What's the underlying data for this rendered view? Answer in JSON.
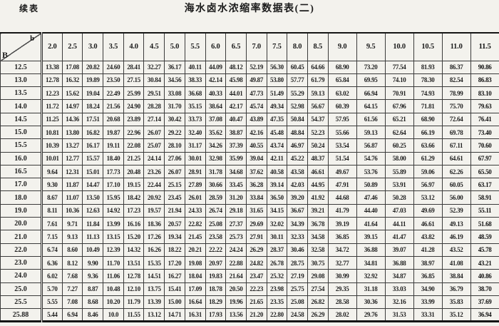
{
  "page": {
    "continued_label": "续表",
    "title": "海水卤水浓缩率数据表(二)"
  },
  "table": {
    "corner": {
      "top_label": "b",
      "bottom_label": "B"
    },
    "columns": [
      "2.0",
      "2.5",
      "3.0",
      "3.5",
      "4.0",
      "4.5",
      "5.0",
      "5.5",
      "6.0",
      "6.5",
      "7.0",
      "7.5",
      "8.0",
      "8.5",
      "9.0",
      "9.5",
      "10.0",
      "10.5",
      "11.0",
      "11.5"
    ],
    "rows": [
      {
        "label": "12.5",
        "values": [
          "13.38",
          "17.08",
          "20.82",
          "24.60",
          "28.41",
          "32.27",
          "36.17",
          "40.11",
          "44.09",
          "48.12",
          "52.19",
          "56.30",
          "60.45",
          "64.66",
          "68.90",
          "73.20",
          "77.54",
          "81.93",
          "86.37",
          "90.86"
        ]
      },
      {
        "label": "13.0",
        "values": [
          "12.78",
          "16.32",
          "19.89",
          "23.50",
          "27.15",
          "30.84",
          "34.56",
          "38.33",
          "42.14",
          "45.98",
          "49.87",
          "53.80",
          "57.77",
          "61.79",
          "65.84",
          "69.95",
          "74.10",
          "78.30",
          "82.54",
          "86.83"
        ]
      },
      {
        "label": "13.5",
        "values": [
          "12.23",
          "15.62",
          "19.04",
          "22.49",
          "25.99",
          "29.51",
          "33.08",
          "36.68",
          "40.33",
          "44.01",
          "47.73",
          "51.49",
          "55.29",
          "59.13",
          "63.02",
          "66.94",
          "70.91",
          "74.93",
          "78.99",
          "83.10"
        ]
      },
      {
        "label": "14.0",
        "values": [
          "11.72",
          "14.97",
          "18.24",
          "21.56",
          "24.90",
          "28.28",
          "31.70",
          "35.15",
          "38.64",
          "42.17",
          "45.74",
          "49.34",
          "52.98",
          "56.67",
          "60.39",
          "64.15",
          "67.96",
          "71.81",
          "75.70",
          "79.63"
        ]
      },
      {
        "label": "14.5",
        "values": [
          "11.25",
          "14.36",
          "17.51",
          "20.68",
          "23.89",
          "27.14",
          "30.42",
          "33.73",
          "37.08",
          "40.47",
          "43.89",
          "47.35",
          "50.84",
          "54.37",
          "57.95",
          "61.56",
          "65.21",
          "68.90",
          "72.64",
          "76.41"
        ]
      },
      {
        "label": "15.0",
        "values": [
          "10.81",
          "13.80",
          "16.82",
          "19.87",
          "22.96",
          "26.07",
          "29.22",
          "32.40",
          "35.62",
          "38.87",
          "42.16",
          "45.48",
          "48.84",
          "52.23",
          "55.66",
          "59.13",
          "62.64",
          "66.19",
          "69.78",
          "73.40"
        ]
      },
      {
        "label": "15.5",
        "values": [
          "10.39",
          "13.27",
          "16.17",
          "19.11",
          "22.08",
          "25.07",
          "28.10",
          "31.17",
          "34.26",
          "37.39",
          "40.55",
          "43.74",
          "46.97",
          "50.24",
          "53.54",
          "56.87",
          "60.25",
          "63.66",
          "67.11",
          "70.60"
        ]
      },
      {
        "label": "16.0",
        "values": [
          "10.01",
          "12.77",
          "15.57",
          "18.40",
          "21.25",
          "24.14",
          "27.06",
          "30.01",
          "32.98",
          "35.99",
          "39.04",
          "42.11",
          "45.22",
          "48.37",
          "51.54",
          "54.76",
          "58.00",
          "61.29",
          "64.61",
          "67.97"
        ]
      },
      {
        "label": "16.5",
        "values": [
          "9.64",
          "12.31",
          "15.01",
          "17.73",
          "20.48",
          "23.26",
          "26.07",
          "28.91",
          "31.78",
          "34.68",
          "37.62",
          "40.58",
          "43.58",
          "46.61",
          "49.67",
          "53.76",
          "55.89",
          "59.06",
          "62.26",
          "65.50"
        ]
      },
      {
        "label": "17.0",
        "values": [
          "9.30",
          "11.87",
          "14.47",
          "17.10",
          "19.15",
          "22.44",
          "25.15",
          "27.89",
          "30.66",
          "33.45",
          "36.28",
          "39.14",
          "42.03",
          "44.95",
          "47.91",
          "50.89",
          "53.91",
          "56.97",
          "60.05",
          "63.17"
        ]
      },
      {
        "label": "18.0",
        "values": [
          "8.67",
          "11.07",
          "13.50",
          "15.95",
          "18.42",
          "20.92",
          "23.45",
          "26.01",
          "28.59",
          "31.20",
          "33.84",
          "36.50",
          "39.20",
          "41.92",
          "44.68",
          "47.46",
          "50.28",
          "53.12",
          "56.00",
          "58.91"
        ]
      },
      {
        "label": "19.0",
        "values": [
          "8.11",
          "10.36",
          "12.63",
          "14.92",
          "17.23",
          "19.57",
          "21.94",
          "24.33",
          "26.74",
          "29.18",
          "31.65",
          "34.15",
          "36.67",
          "39.21",
          "41.79",
          "44.40",
          "47.03",
          "49.69",
          "52.39",
          "55.11"
        ]
      },
      {
        "label": "20.0",
        "values": [
          "7.61",
          "9.71",
          "11.84",
          "13.99",
          "16.16",
          "18.36",
          "20.57",
          "22.82",
          "25.08",
          "27.37",
          "29.69",
          "32.02",
          "34.39",
          "36.78",
          "39.19",
          "41.64",
          "44.11",
          "46.61",
          "49.13",
          "51.68"
        ]
      },
      {
        "label": "21.0",
        "values": [
          "7.15",
          "9.13",
          "11.13",
          "13.15",
          "15.20",
          "17.26",
          "19.34",
          "21.45",
          "23.58",
          "25.73",
          "27.91",
          "30.11",
          "32.33",
          "34.58",
          "36.85",
          "39.15",
          "41.47",
          "43.82",
          "46.19",
          "48.59"
        ]
      },
      {
        "label": "22.0",
        "values": [
          "6.74",
          "8.60",
          "10.49",
          "12.39",
          "14.32",
          "16.26",
          "18.22",
          "20.21",
          "22.22",
          "24.24",
          "26.29",
          "28.37",
          "30.46",
          "32.58",
          "34.72",
          "36.88",
          "39.07",
          "41.28",
          "43.52",
          "45.78"
        ]
      },
      {
        "label": "23.0",
        "values": [
          "6.36",
          "8.12",
          "9.90",
          "11.70",
          "13.51",
          "15.35",
          "17.20",
          "19.08",
          "20.97",
          "22.88",
          "24.82",
          "26.78",
          "28.75",
          "30.75",
          "32.77",
          "34.81",
          "36.88",
          "38.97",
          "41.08",
          "43.21"
        ]
      },
      {
        "label": "24.0",
        "values": [
          "6.02",
          "7.68",
          "9.36",
          "11.06",
          "12.78",
          "14.51",
          "16.27",
          "18.04",
          "19.83",
          "21.64",
          "23.47",
          "25.32",
          "27.19",
          "29.08",
          "30.99",
          "32.92",
          "34.87",
          "36.85",
          "38.84",
          "40.86"
        ]
      },
      {
        "label": "25.0",
        "values": [
          "5.70",
          "7.27",
          "8.87",
          "10.48",
          "12.10",
          "13.75",
          "15.41",
          "17.09",
          "18.78",
          "20.50",
          "22.23",
          "23.98",
          "25.75",
          "27.54",
          "29.35",
          "31.18",
          "33.03",
          "34.90",
          "36.79",
          "38.70"
        ]
      },
      {
        "label": "25.5",
        "values": [
          "5.55",
          "7.08",
          "8.68",
          "10.20",
          "11.79",
          "13.39",
          "15.00",
          "16.64",
          "18.29",
          "19.96",
          "21.65",
          "23.35",
          "25.08",
          "26.82",
          "28.58",
          "30.36",
          "32.16",
          "33.99",
          "35.83",
          "37.69"
        ]
      },
      {
        "label": "25.88",
        "values": [
          "5.44",
          "6.94",
          "8.46",
          "10.0",
          "11.55",
          "13.12",
          "14.71",
          "16.31",
          "17.93",
          "13.56",
          "21.20",
          "22.80",
          "24.58",
          "26.29",
          "28.02",
          "29.76",
          "31.53",
          "33.31",
          "35.12",
          "36.94"
        ]
      }
    ]
  }
}
